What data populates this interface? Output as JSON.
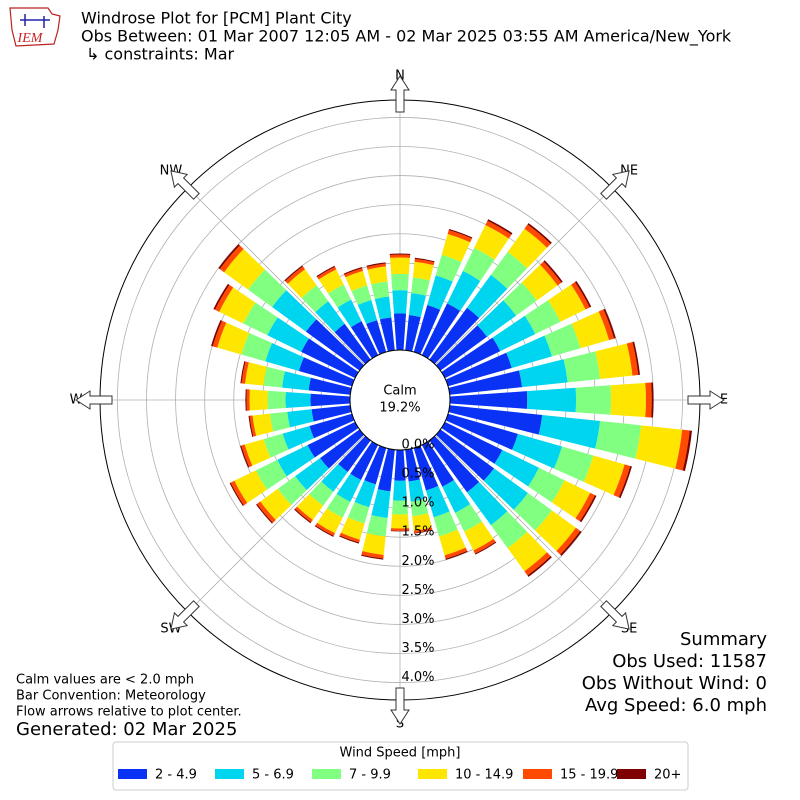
{
  "chart_data": {
    "type": "windrose",
    "title": "Windrose Plot for [PCM] Plant City",
    "subtitle": "Obs Between: 01 Mar 2007 12:05 AM - 02 Mar 2025 03:55 AM America/New_York",
    "constraints": "↳ constraints: Mar",
    "logo": "IEM",
    "calm_label": "Calm",
    "calm_value": 19.2,
    "calm_value_label": "19.2%",
    "compass": [
      "N",
      "NE",
      "E",
      "SE",
      "S",
      "SW",
      "W",
      "NW"
    ],
    "directions": [
      0,
      10,
      20,
      30,
      40,
      50,
      60,
      70,
      80,
      90,
      100,
      110,
      120,
      130,
      140,
      150,
      160,
      170,
      180,
      190,
      200,
      210,
      220,
      230,
      240,
      250,
      260,
      270,
      280,
      290,
      300,
      310,
      320,
      330,
      340,
      350
    ],
    "ylim": [
      0,
      4.3
    ],
    "yticks": [
      {
        "value": 0,
        "label": "0.0%"
      },
      {
        "value": 0.5,
        "label": "0.5%"
      },
      {
        "value": 1,
        "label": "1.0%"
      },
      {
        "value": 1.5,
        "label": "1.5%"
      },
      {
        "value": 2,
        "label": "2.0%"
      },
      {
        "value": 2.5,
        "label": "2.5%"
      },
      {
        "value": 3,
        "label": "3.0%"
      },
      {
        "value": 3.5,
        "label": "3.5%"
      },
      {
        "value": 4,
        "label": "4.0%"
      }
    ],
    "legend_title": "Wind Speed [mph]",
    "series": [
      {
        "name": "2 - 4.9",
        "color": "#0a32f5",
        "values": [
          0.63,
          0.61,
          0.84,
          0.99,
          1.1,
          0.99,
          1.06,
          1.14,
          1.25,
          1.33,
          1.6,
          1.25,
          1.1,
          1.14,
          1.1,
          0.8,
          0.76,
          0.55,
          0.53,
          0.72,
          0.65,
          0.67,
          0.67,
          0.84,
          0.91,
          0.76,
          0.67,
          0.68,
          0.72,
          0.95,
          1.03,
          1.14,
          0.76,
          0.65,
          0.57,
          0.57
        ]
      },
      {
        "name": "5 - 6.9",
        "color": "#00d5f0",
        "values": [
          0.4,
          0.38,
          0.53,
          0.62,
          0.7,
          0.62,
          0.67,
          0.72,
          0.79,
          0.84,
          1.0,
          0.79,
          0.7,
          0.72,
          0.7,
          0.5,
          0.48,
          0.35,
          0.34,
          0.46,
          0.41,
          0.42,
          0.42,
          0.53,
          0.58,
          0.48,
          0.42,
          0.43,
          0.46,
          0.6,
          0.65,
          0.72,
          0.48,
          0.41,
          0.36,
          0.36
        ]
      },
      {
        "name": "7 - 9.9",
        "color": "#80ff80",
        "values": [
          0.28,
          0.27,
          0.37,
          0.44,
          0.49,
          0.44,
          0.48,
          0.51,
          0.56,
          0.6,
          0.71,
          0.56,
          0.49,
          0.51,
          0.49,
          0.36,
          0.34,
          0.25,
          0.24,
          0.32,
          0.29,
          0.3,
          0.3,
          0.37,
          0.41,
          0.34,
          0.3,
          0.31,
          0.32,
          0.43,
          0.46,
          0.51,
          0.34,
          0.29,
          0.26,
          0.26
        ]
      },
      {
        "name": "10 - 14.9",
        "color": "#ffe600",
        "values": [
          0.28,
          0.27,
          0.37,
          0.44,
          0.49,
          0.44,
          0.48,
          0.51,
          0.56,
          0.6,
          0.71,
          0.56,
          0.49,
          0.51,
          0.49,
          0.36,
          0.34,
          0.25,
          0.24,
          0.32,
          0.29,
          0.3,
          0.3,
          0.37,
          0.41,
          0.34,
          0.3,
          0.31,
          0.32,
          0.43,
          0.46,
          0.51,
          0.34,
          0.29,
          0.26,
          0.26
        ]
      },
      {
        "name": "15 - 19.9",
        "color": "#ff4a00",
        "values": [
          0.05,
          0.05,
          0.07,
          0.08,
          0.09,
          0.08,
          0.08,
          0.09,
          0.1,
          0.1,
          0.13,
          0.1,
          0.09,
          0.09,
          0.09,
          0.06,
          0.06,
          0.04,
          0.04,
          0.06,
          0.05,
          0.05,
          0.05,
          0.07,
          0.07,
          0.06,
          0.05,
          0.05,
          0.06,
          0.08,
          0.08,
          0.09,
          0.06,
          0.05,
          0.05,
          0.05
        ]
      },
      {
        "name": "20+",
        "color": "#7f0000",
        "values": [
          0.02,
          0.02,
          0.02,
          0.03,
          0.03,
          0.03,
          0.03,
          0.03,
          0.03,
          0.03,
          0.04,
          0.03,
          0.03,
          0.03,
          0.03,
          0.02,
          0.02,
          0.01,
          0.01,
          0.02,
          0.02,
          0.02,
          0.02,
          0.02,
          0.02,
          0.02,
          0.02,
          0.02,
          0.02,
          0.03,
          0.03,
          0.03,
          0.02,
          0.02,
          0.02,
          0.02
        ]
      }
    ],
    "notes": [
      "Calm values are < 2.0 mph",
      "Bar Convention: Meteorology",
      "Flow arrows relative to plot center."
    ],
    "generated": "Generated: 02 Mar 2025",
    "summary": [
      "Summary",
      "Obs Used: 11587",
      "Obs Without Wind: 0",
      "Avg Speed: 6.0 mph"
    ]
  }
}
